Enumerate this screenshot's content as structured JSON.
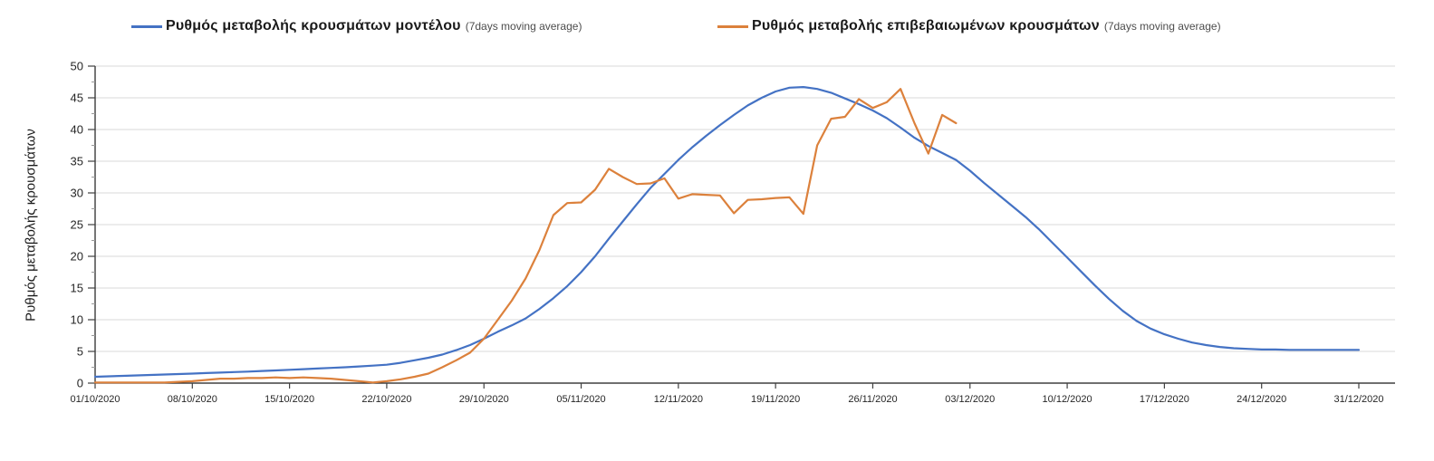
{
  "legend": [
    {
      "label": "Ρυθμός μεταβολής κρουσμάτων μοντέλου",
      "suffix": "(7days moving average)",
      "color": "#4472C4"
    },
    {
      "label": "Ρυθμός μεταβολής επιβεβαιωμένων κρουσμάτων",
      "suffix": "(7days moving average)",
      "color": "#DC813C"
    }
  ],
  "y_axis": {
    "title": "Ρυθμός μεταβολής κρουσμάτων"
  },
  "colors": {
    "grid": "#D9D9D9",
    "axis": "#1a1a1a",
    "tick": "#404040",
    "minor_tick": "#999999"
  },
  "chart_data": {
    "type": "line",
    "title": "",
    "xlabel": "",
    "ylabel": "Ρυθμός μεταβολής κρουσμάτων",
    "ylim": [
      0,
      50
    ],
    "y_tick_step": 5,
    "y_tick_labels": [
      "0",
      "5",
      "10",
      "15",
      "20",
      "25",
      "30",
      "35",
      "40",
      "45",
      "50"
    ],
    "grid": "horizontal",
    "legend_position": "top",
    "x_tick_labels": [
      "01/10/2020",
      "08/10/2020",
      "15/10/2020",
      "22/10/2020",
      "29/10/2020",
      "05/11/2020",
      "12/11/2020",
      "19/11/2020",
      "26/11/2020",
      "03/12/2020",
      "10/12/2020",
      "17/12/2020",
      "24/12/2020",
      "31/12/2020"
    ],
    "x_tick_interval_days": 7,
    "x_range_days": 91,
    "series": [
      {
        "name": "Ρυθμός μεταβολής κρουσμάτων μοντέλου (7days moving average)",
        "color": "#4472C4",
        "start_date": "01/10/2020",
        "values": [
          1.0,
          1.07,
          1.14,
          1.21,
          1.29,
          1.36,
          1.43,
          1.5,
          1.58,
          1.66,
          1.74,
          1.82,
          1.91,
          2.0,
          2.1,
          2.2,
          2.3,
          2.4,
          2.5,
          2.63,
          2.76,
          2.9,
          3.2,
          3.6,
          4.0,
          4.5,
          5.2,
          6.0,
          7.0,
          8.1,
          9.1,
          10.2,
          11.7,
          13.4,
          15.3,
          17.5,
          20.0,
          22.8,
          25.5,
          28.2,
          30.8,
          33.0,
          35.2,
          37.2,
          39.0,
          40.7,
          42.3,
          43.8,
          45.0,
          46.0,
          46.6,
          46.7,
          46.4,
          45.8,
          44.9,
          44.0,
          43.0,
          41.8,
          40.3,
          38.7,
          37.4,
          36.3,
          35.2,
          33.5,
          31.6,
          29.8,
          28.0,
          26.2,
          24.2,
          22.0,
          19.8,
          17.6,
          15.4,
          13.3,
          11.4,
          9.8,
          8.6,
          7.7,
          7.0,
          6.4,
          6.0,
          5.7,
          5.5,
          5.4,
          5.3,
          5.3,
          5.25,
          5.25,
          5.25,
          5.25,
          5.25,
          5.25
        ]
      },
      {
        "name": "Ρυθμός μεταβολής επιβεβαιωμένων κρουσμάτων (7days moving average)",
        "color": "#DC813C",
        "start_date": "01/10/2020",
        "values": [
          0.1,
          0.1,
          0.1,
          0.1,
          0.1,
          0.1,
          0.2,
          0.3,
          0.5,
          0.7,
          0.7,
          0.8,
          0.8,
          0.9,
          0.8,
          0.9,
          0.8,
          0.7,
          0.5,
          0.3,
          0.1,
          0.3,
          0.6,
          1.0,
          1.5,
          2.5,
          3.6,
          4.8,
          7.0,
          10.0,
          13.0,
          16.5,
          21.0,
          26.5,
          28.4,
          28.5,
          30.5,
          33.8,
          32.5,
          31.4,
          31.5,
          32.3,
          29.1,
          29.8,
          29.7,
          29.6,
          26.8,
          28.9,
          29.0,
          29.2,
          29.3,
          26.7,
          37.5,
          41.7,
          42.0,
          44.8,
          43.4,
          44.3,
          46.4,
          41.0,
          36.2,
          42.3,
          41.0
        ]
      }
    ]
  }
}
